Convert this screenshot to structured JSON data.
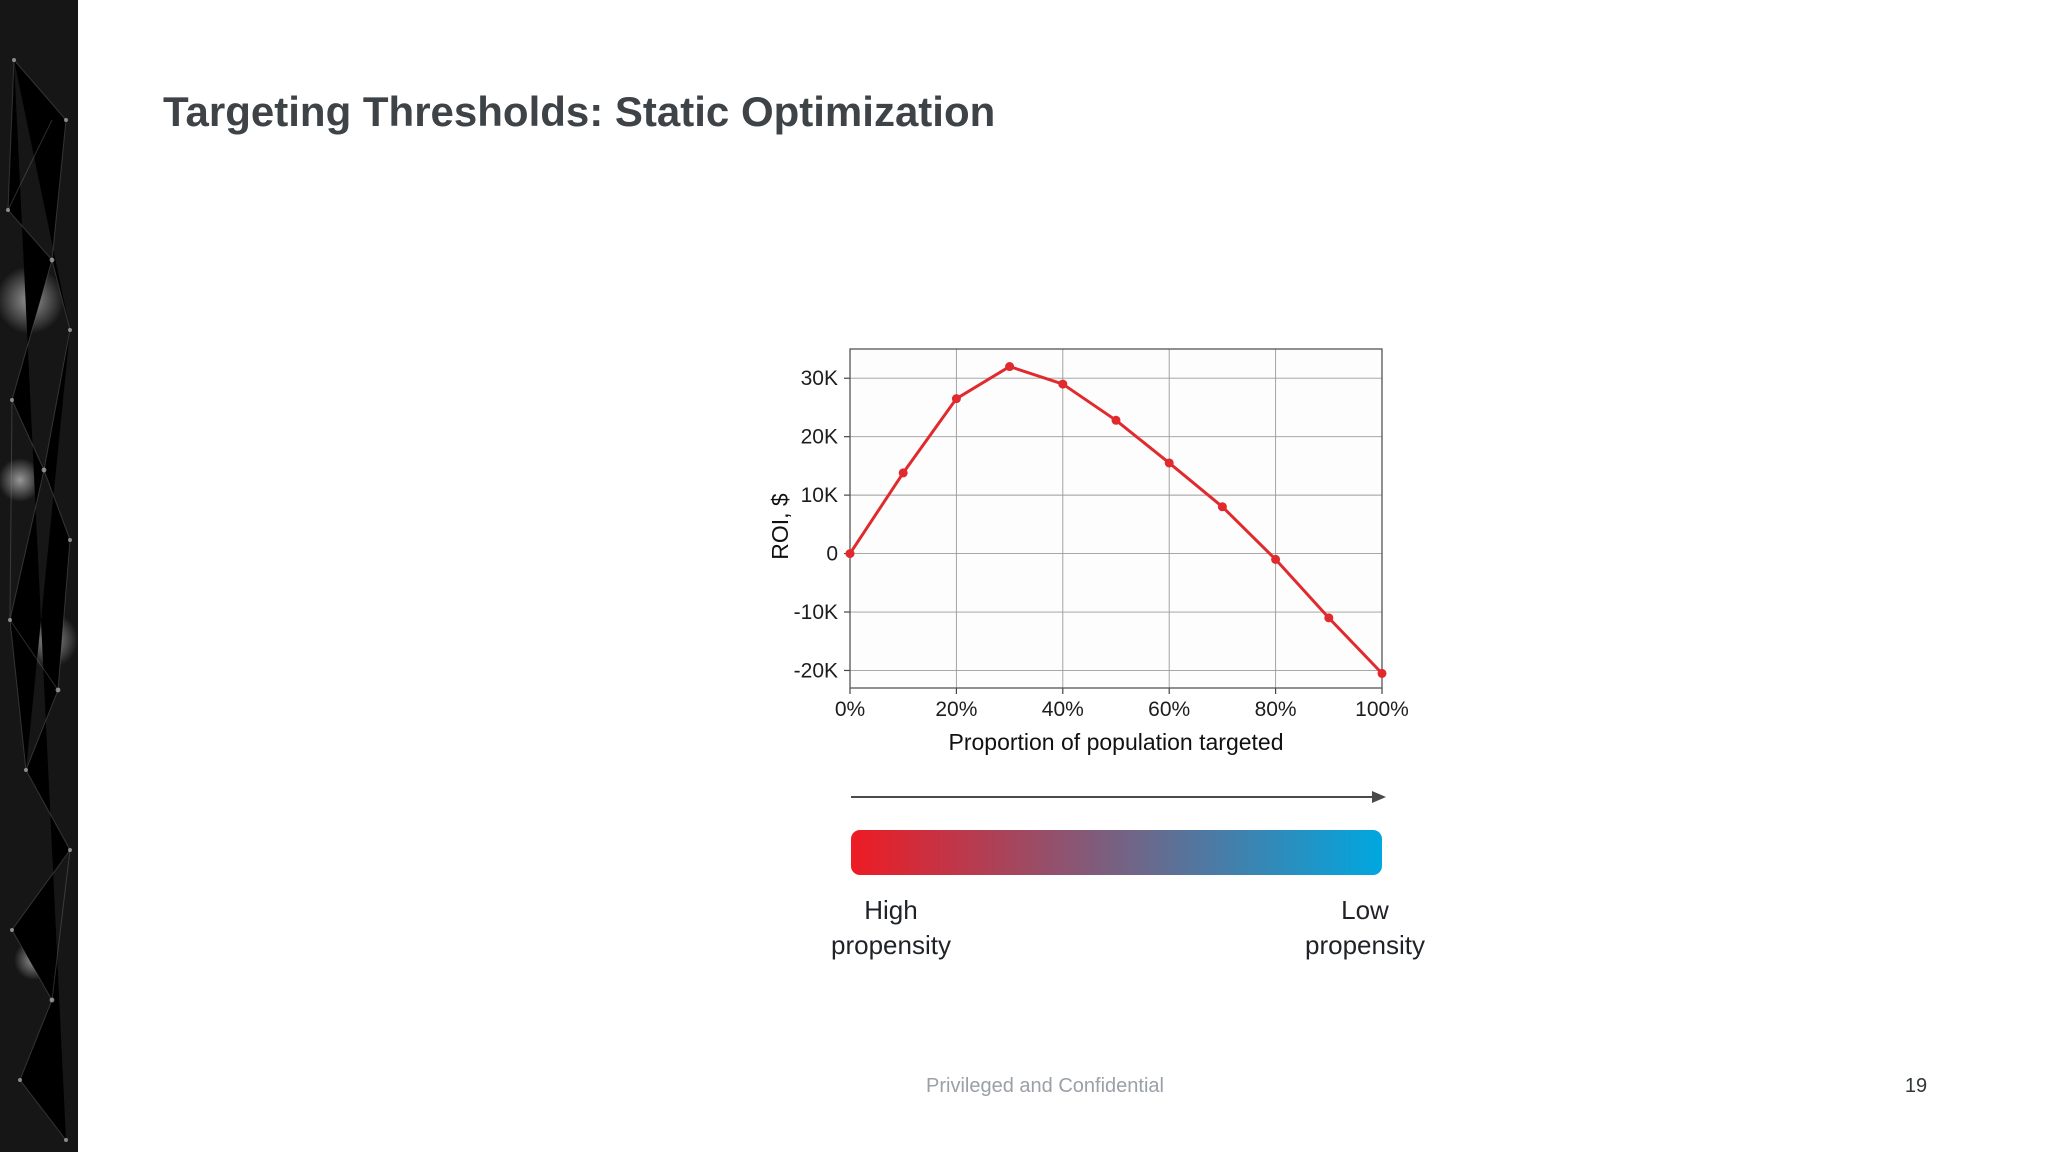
{
  "slide": {
    "title": "Targeting Thresholds: Static Optimization",
    "footer": {
      "confidential": "Privileged and Confidential",
      "page_number": "19"
    }
  },
  "chart_data": {
    "type": "line",
    "title": "",
    "xlabel": "Proportion of population targeted",
    "ylabel": "ROI, $",
    "x": [
      0,
      10,
      20,
      30,
      40,
      50,
      60,
      70,
      80,
      90,
      100
    ],
    "y": [
      0,
      13800,
      26500,
      32000,
      29000,
      22800,
      15500,
      8000,
      -1000,
      -11000,
      -20500
    ],
    "x_ticks": [
      "0%",
      "20%",
      "40%",
      "60%",
      "80%",
      "100%"
    ],
    "x_tick_values": [
      0,
      20,
      40,
      60,
      80,
      100
    ],
    "y_ticks": [
      "30K",
      "20K",
      "10K",
      "0",
      "-10K",
      "-20K"
    ],
    "y_tick_values": [
      30000,
      20000,
      10000,
      0,
      -10000,
      -20000
    ],
    "xlim": [
      0,
      100
    ],
    "ylim": [
      -23000,
      35000
    ],
    "grid": true,
    "legend_position": "none",
    "line_color": "#e02a2d"
  },
  "legend": {
    "high_label": "High propensity",
    "low_label": "Low propensity",
    "gradient_left_color": "#ee1b24",
    "gradient_right_color": "#00a7e0",
    "arrow_color": "#4a4a4a"
  }
}
